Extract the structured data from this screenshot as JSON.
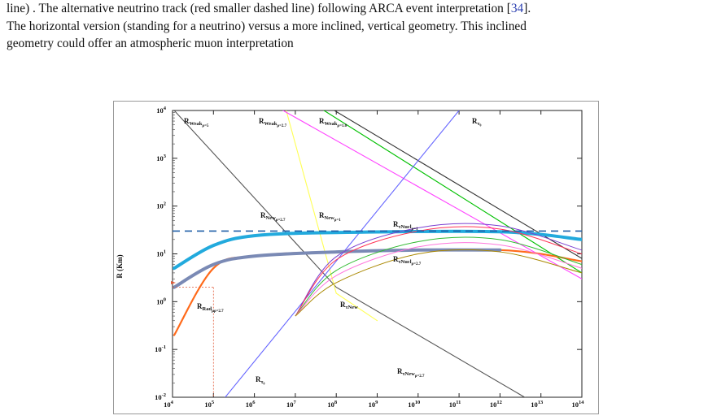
{
  "text": {
    "line1": "line) . The alternative neutrino track (red smaller dashed line) following ARCA event interpretation [",
    "line1_ref": "34",
    "line1_end": "].",
    "line2": "The horizontal version (standing for a neutrino) versus a more inclined, vertical geometry. This inclined",
    "line3": "geometry could offer an atmospheric muon interpretation"
  },
  "chart_data": {
    "type": "line",
    "xscale": "log",
    "yscale": "log",
    "xlim": [
      10000,
      100000000000000
    ],
    "ylim": [
      0.01,
      10000
    ],
    "ylabel": "R (Km)",
    "xticks": [
      {
        "b": "10",
        "e": "4"
      },
      {
        "b": "10",
        "e": "5"
      },
      {
        "b": "10",
        "e": "6"
      },
      {
        "b": "10",
        "e": "7"
      },
      {
        "b": "10",
        "e": "8"
      },
      {
        "b": "10",
        "e": "9"
      },
      {
        "b": "10",
        "e": "10"
      },
      {
        "b": "10",
        "e": "11"
      },
      {
        "b": "10",
        "e": "12"
      },
      {
        "b": "10",
        "e": "13"
      },
      {
        "b": "10",
        "e": "14"
      }
    ],
    "yticks": [
      {
        "b": "10",
        "e": "-2"
      },
      {
        "b": "10",
        "e": "-1"
      },
      {
        "b": "10",
        "e": "0"
      },
      {
        "b": "10",
        "e": "1"
      },
      {
        "b": "10",
        "e": "2"
      },
      {
        "b": "10",
        "e": "3"
      },
      {
        "b": "10",
        "e": "4"
      }
    ],
    "labels": [
      {
        "main": "R",
        "sub": "Weak",
        "subsub": "ρ=5"
      },
      {
        "main": "R",
        "sub": "Weak",
        "subsub": "ρ=2.7"
      },
      {
        "main": "R",
        "sub": "Weak",
        "subsub": "ρ=1.0"
      },
      {
        "main": "R",
        "sub": "τ₀"
      },
      {
        "main": "R",
        "sub": "New",
        "subsub": "ρ=2.7"
      },
      {
        "main": "R",
        "sub": "New",
        "subsub": "ρ=1"
      },
      {
        "main": "R",
        "sub": "τNucl",
        "subsub": "ρ=1"
      },
      {
        "main": "R",
        "sub": "τNucl",
        "subsub": "ρ=2.7"
      },
      {
        "main": "R",
        "sub": "Rad",
        "subsub": "μρ=2.7"
      },
      {
        "main": "R",
        "sub": "τNew"
      },
      {
        "main": "R",
        "sub": "τNew",
        "subsub": "ρ=2.7"
      },
      {
        "main": "R",
        "sub": "τ₀"
      }
    ],
    "reference_lines": [
      {
        "name": "horizontal-dashed",
        "y": 30,
        "color": "#1f5fa8"
      },
      {
        "name": "red-dotted",
        "x": 100000,
        "y": 2,
        "color": "#e05a3a"
      }
    ],
    "series": [
      {
        "color": "#555555",
        "points": [
          [
            11000,
            10000
          ],
          [
            100000000,
            2
          ],
          [
            100000000000000,
            0.002
          ]
        ]
      },
      {
        "color": "#ffff55",
        "points": [
          [
            6000000,
            10000
          ],
          [
            100000000,
            1.5
          ],
          [
            1000000000,
            0.4
          ]
        ]
      },
      {
        "color": "#00c000",
        "points": [
          [
            50000000,
            10000
          ],
          [
            100000000000000,
            4
          ]
        ]
      },
      {
        "color": "#ff44ff",
        "points": [
          [
            5000000,
            10000
          ],
          [
            100000000000000,
            3
          ]
        ]
      },
      {
        "color": "#333333",
        "points": [
          [
            90000000,
            10000
          ],
          [
            100000000000000,
            8
          ]
        ]
      },
      {
        "color": "#6666ff",
        "points": [
          [
            100000,
            0.005
          ],
          [
            100000000000,
            10000
          ]
        ]
      },
      {
        "color": "#ff6a1a",
        "points": [
          [
            11000,
            0.2
          ],
          [
            100000,
            5
          ],
          [
            1000000,
            9
          ],
          [
            100000000,
            11
          ],
          [
            1000000000000,
            12
          ],
          [
            100000000000000,
            7
          ]
        ]
      },
      {
        "color": "#22aadd",
        "points": [
          [
            11000,
            5
          ],
          [
            100000,
            15
          ],
          [
            1000000,
            24
          ],
          [
            100000000,
            28
          ],
          [
            1000000000000,
            29
          ],
          [
            100000000000000,
            20
          ]
        ]
      },
      {
        "color": "#7a8ab5",
        "points": [
          [
            11000,
            2
          ],
          [
            100000,
            6
          ],
          [
            1000000,
            9
          ],
          [
            100000000,
            11
          ],
          [
            10000000000,
            12
          ],
          [
            1000000000000,
            12
          ]
        ]
      }
    ]
  }
}
